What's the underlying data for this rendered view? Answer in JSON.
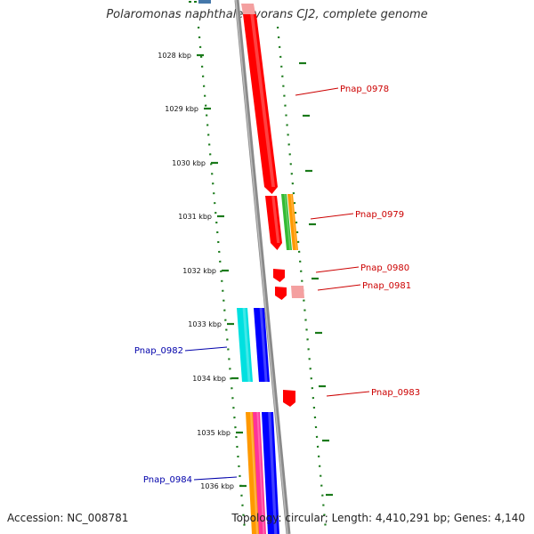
{
  "title": "Polaromonas naphthalenivorans CJ2, complete genome",
  "footer": {
    "accession": "Accession: NC_008781",
    "summary": "Topology: circular; Length: 4,410,291 bp; Genes: 4,140"
  },
  "scale": {
    "ticks": [
      {
        "kbp": 1028,
        "label": "1028 kbp"
      },
      {
        "kbp": 1029,
        "label": "1029 kbp"
      },
      {
        "kbp": 1030,
        "label": "1030 kbp"
      },
      {
        "kbp": 1031,
        "label": "1031 kbp"
      },
      {
        "kbp": 1032,
        "label": "1032 kbp"
      },
      {
        "kbp": 1033,
        "label": "1033 kbp"
      },
      {
        "kbp": 1034,
        "label": "1034 kbp"
      },
      {
        "kbp": 1035,
        "label": "1035 kbp"
      },
      {
        "kbp": 1036,
        "label": "1036 kbp"
      }
    ]
  },
  "genes": [
    {
      "name": "Pnap_0978",
      "strand": "forward",
      "label_color": "#cc0000"
    },
    {
      "name": "Pnap_0979",
      "strand": "forward",
      "label_color": "#cc0000"
    },
    {
      "name": "Pnap_0980",
      "strand": "forward",
      "label_color": "#cc0000"
    },
    {
      "name": "Pnap_0981",
      "strand": "forward",
      "label_color": "#cc0000"
    },
    {
      "name": "Pnap_0982",
      "strand": "reverse",
      "label_color": "#0000aa"
    },
    {
      "name": "Pnap_0983",
      "strand": "forward",
      "label_color": "#cc0000"
    },
    {
      "name": "Pnap_0984",
      "strand": "reverse",
      "label_color": "#0000aa"
    }
  ],
  "colors": {
    "backbone": "#888888",
    "ruler": "#1a7a1a",
    "forward_gene": "#ff0000",
    "light_gene": "#f4a0a0",
    "reverse_gene": "#0000ff",
    "cyan_gene": "#00e0e0",
    "orange_gene": "#ff9900",
    "green_gene": "#33bb33",
    "pink_gene": "#ff3399",
    "steel_gene": "#4477aa"
  }
}
